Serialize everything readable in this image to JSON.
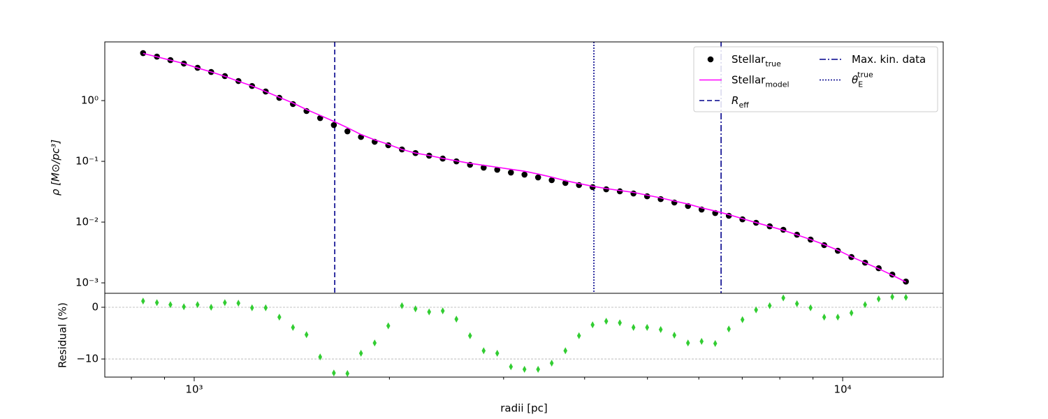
{
  "chart_data": [
    {
      "type": "line",
      "xscale": "log",
      "yscale": "log",
      "ylabel": "ρ [M⊙/pc³]",
      "xlim": [
        728,
        14290
      ],
      "ylim": [
        0.000673,
        9.25
      ],
      "yticks": [
        {
          "value": 0.001,
          "label": "10⁻³"
        },
        {
          "value": 0.01,
          "label": "10⁻²"
        },
        {
          "value": 0.1,
          "label": "10⁻¹"
        },
        {
          "value": 1,
          "label": "10⁰"
        }
      ],
      "x": [
        834,
        876,
        919,
        964,
        1012,
        1062,
        1115,
        1170,
        1228,
        1289,
        1353,
        1420,
        1490,
        1564,
        1642,
        1723,
        1808,
        1898,
        1992,
        2091,
        2194,
        2303,
        2417,
        2537,
        2663,
        2795,
        2933,
        3079,
        3231,
        3391,
        3559,
        3736,
        3921,
        4115,
        4319,
        4533,
        4758,
        4994,
        5241,
        5501,
        5774,
        6060,
        6360,
        6675,
        7006,
        7353,
        7718,
        8100,
        8502,
        8923,
        9365,
        9829,
        10316,
        10828,
        11364,
        11927,
        12518
      ],
      "series": [
        {
          "name": "Stellar",
          "subscript": "true",
          "color": "#000000",
          "marker": "circle",
          "values": [
            6.05,
            5.3,
            4.64,
            4.07,
            3.47,
            2.96,
            2.53,
            2.1,
            1.74,
            1.41,
            1.11,
            0.877,
            0.673,
            0.516,
            0.396,
            0.312,
            0.252,
            0.21,
            0.184,
            0.157,
            0.137,
            0.124,
            0.111,
            0.1,
            0.0877,
            0.0788,
            0.0728,
            0.0655,
            0.0605,
            0.0544,
            0.049,
            0.0441,
            0.0407,
            0.0376,
            0.0347,
            0.0321,
            0.0296,
            0.0266,
            0.0239,
            0.021,
            0.0184,
            0.0161,
            0.0141,
            0.0127,
            0.0111,
            0.00975,
            0.00853,
            0.00748,
            0.00621,
            0.00516,
            0.00418,
            0.00338,
            0.00266,
            0.00215,
            0.00174,
            0.00137,
            0.00105
          ]
        },
        {
          "name": "Stellar",
          "subscript": "model",
          "color": "#ff00ff",
          "marker": "none",
          "values": [
            5.98,
            5.25,
            4.62,
            4.07,
            3.45,
            2.96,
            2.51,
            2.08,
            1.74,
            1.41,
            1.13,
            0.913,
            0.711,
            0.571,
            0.454,
            0.358,
            0.277,
            0.226,
            0.191,
            0.157,
            0.137,
            0.125,
            0.112,
            0.102,
            0.0928,
            0.086,
            0.0799,
            0.074,
            0.0688,
            0.0618,
            0.0549,
            0.0481,
            0.0431,
            0.0389,
            0.0357,
            0.0331,
            0.0308,
            0.0277,
            0.025,
            0.0222,
            0.0198,
            0.0172,
            0.0152,
            0.0133,
            0.0114,
            0.0098,
            0.0085,
            0.00735,
            0.00617,
            0.00517,
            0.00426,
            0.00345,
            0.00269,
            0.00214,
            0.00171,
            0.00134,
            0.00103
          ]
        }
      ],
      "vlines": [
        {
          "name": "R",
          "subscript": "eff",
          "font_style": "italic",
          "x": 1647,
          "color": "#00008b",
          "style": "dashed"
        },
        {
          "name": "Max. kin. data",
          "x": 6494,
          "color": "#00008b",
          "style": "dashdot"
        },
        {
          "name": "θ",
          "subscript": "E",
          "superscript": "true",
          "font_style": "italic",
          "x": 4134,
          "color": "#00008b",
          "style": "dotted"
        }
      ],
      "legend": "upper right"
    },
    {
      "type": "scatter",
      "xscale": "log",
      "yscale": "linear",
      "ylabel": "Residual (%)",
      "xlabel": "radii [pc]",
      "xlim": [
        728,
        14290
      ],
      "ylim": [
        -13.5,
        2.7
      ],
      "yticks": [
        {
          "value": -10,
          "label": "−10"
        },
        0
      ],
      "xticks": [
        {
          "value": 1000,
          "label": "10³"
        },
        {
          "value": 10000,
          "label": "10⁴"
        }
      ],
      "xminorticks": [
        800,
        900,
        2000,
        3000,
        4000,
        5000,
        6000,
        7000,
        8000,
        9000
      ],
      "grid": true,
      "x": [
        834,
        876,
        919,
        964,
        1012,
        1062,
        1115,
        1170,
        1228,
        1289,
        1353,
        1420,
        1490,
        1564,
        1642,
        1723,
        1808,
        1898,
        1992,
        2091,
        2194,
        2303,
        2417,
        2537,
        2663,
        2795,
        2933,
        3079,
        3231,
        3391,
        3559,
        3736,
        3921,
        4115,
        4319,
        4533,
        4758,
        4994,
        5241,
        5501,
        5774,
        6060,
        6360,
        6675,
        7006,
        7353,
        7718,
        8100,
        8502,
        8923,
        9365,
        9829,
        10316,
        10828,
        11364,
        11927,
        12518
      ],
      "series": [
        {
          "color": "#32cd32",
          "marker": "diamond",
          "values": [
            1.2,
            0.9,
            0.5,
            0.1,
            0.5,
            0,
            0.9,
            0.8,
            -0.1,
            -0.1,
            -1.9,
            -3.9,
            -5.3,
            -9.6,
            -12.7,
            -12.8,
            -8.9,
            -6.9,
            -3.6,
            0.3,
            -0.3,
            -0.9,
            -0.7,
            -2.3,
            -5.5,
            -8.4,
            -8.9,
            -11.5,
            -12.0,
            -12.0,
            -10.8,
            -8.4,
            -5.5,
            -3.4,
            -2.7,
            -3.0,
            -3.9,
            -3.9,
            -4.3,
            -5.4,
            -6.9,
            -6.6,
            -7.0,
            -4.2,
            -2.4,
            -0.5,
            0.3,
            1.8,
            0.7,
            -0.1,
            -1.9,
            -1.9,
            -1.1,
            0.5,
            1.6,
            2.0,
            1.9
          ]
        }
      ]
    }
  ]
}
